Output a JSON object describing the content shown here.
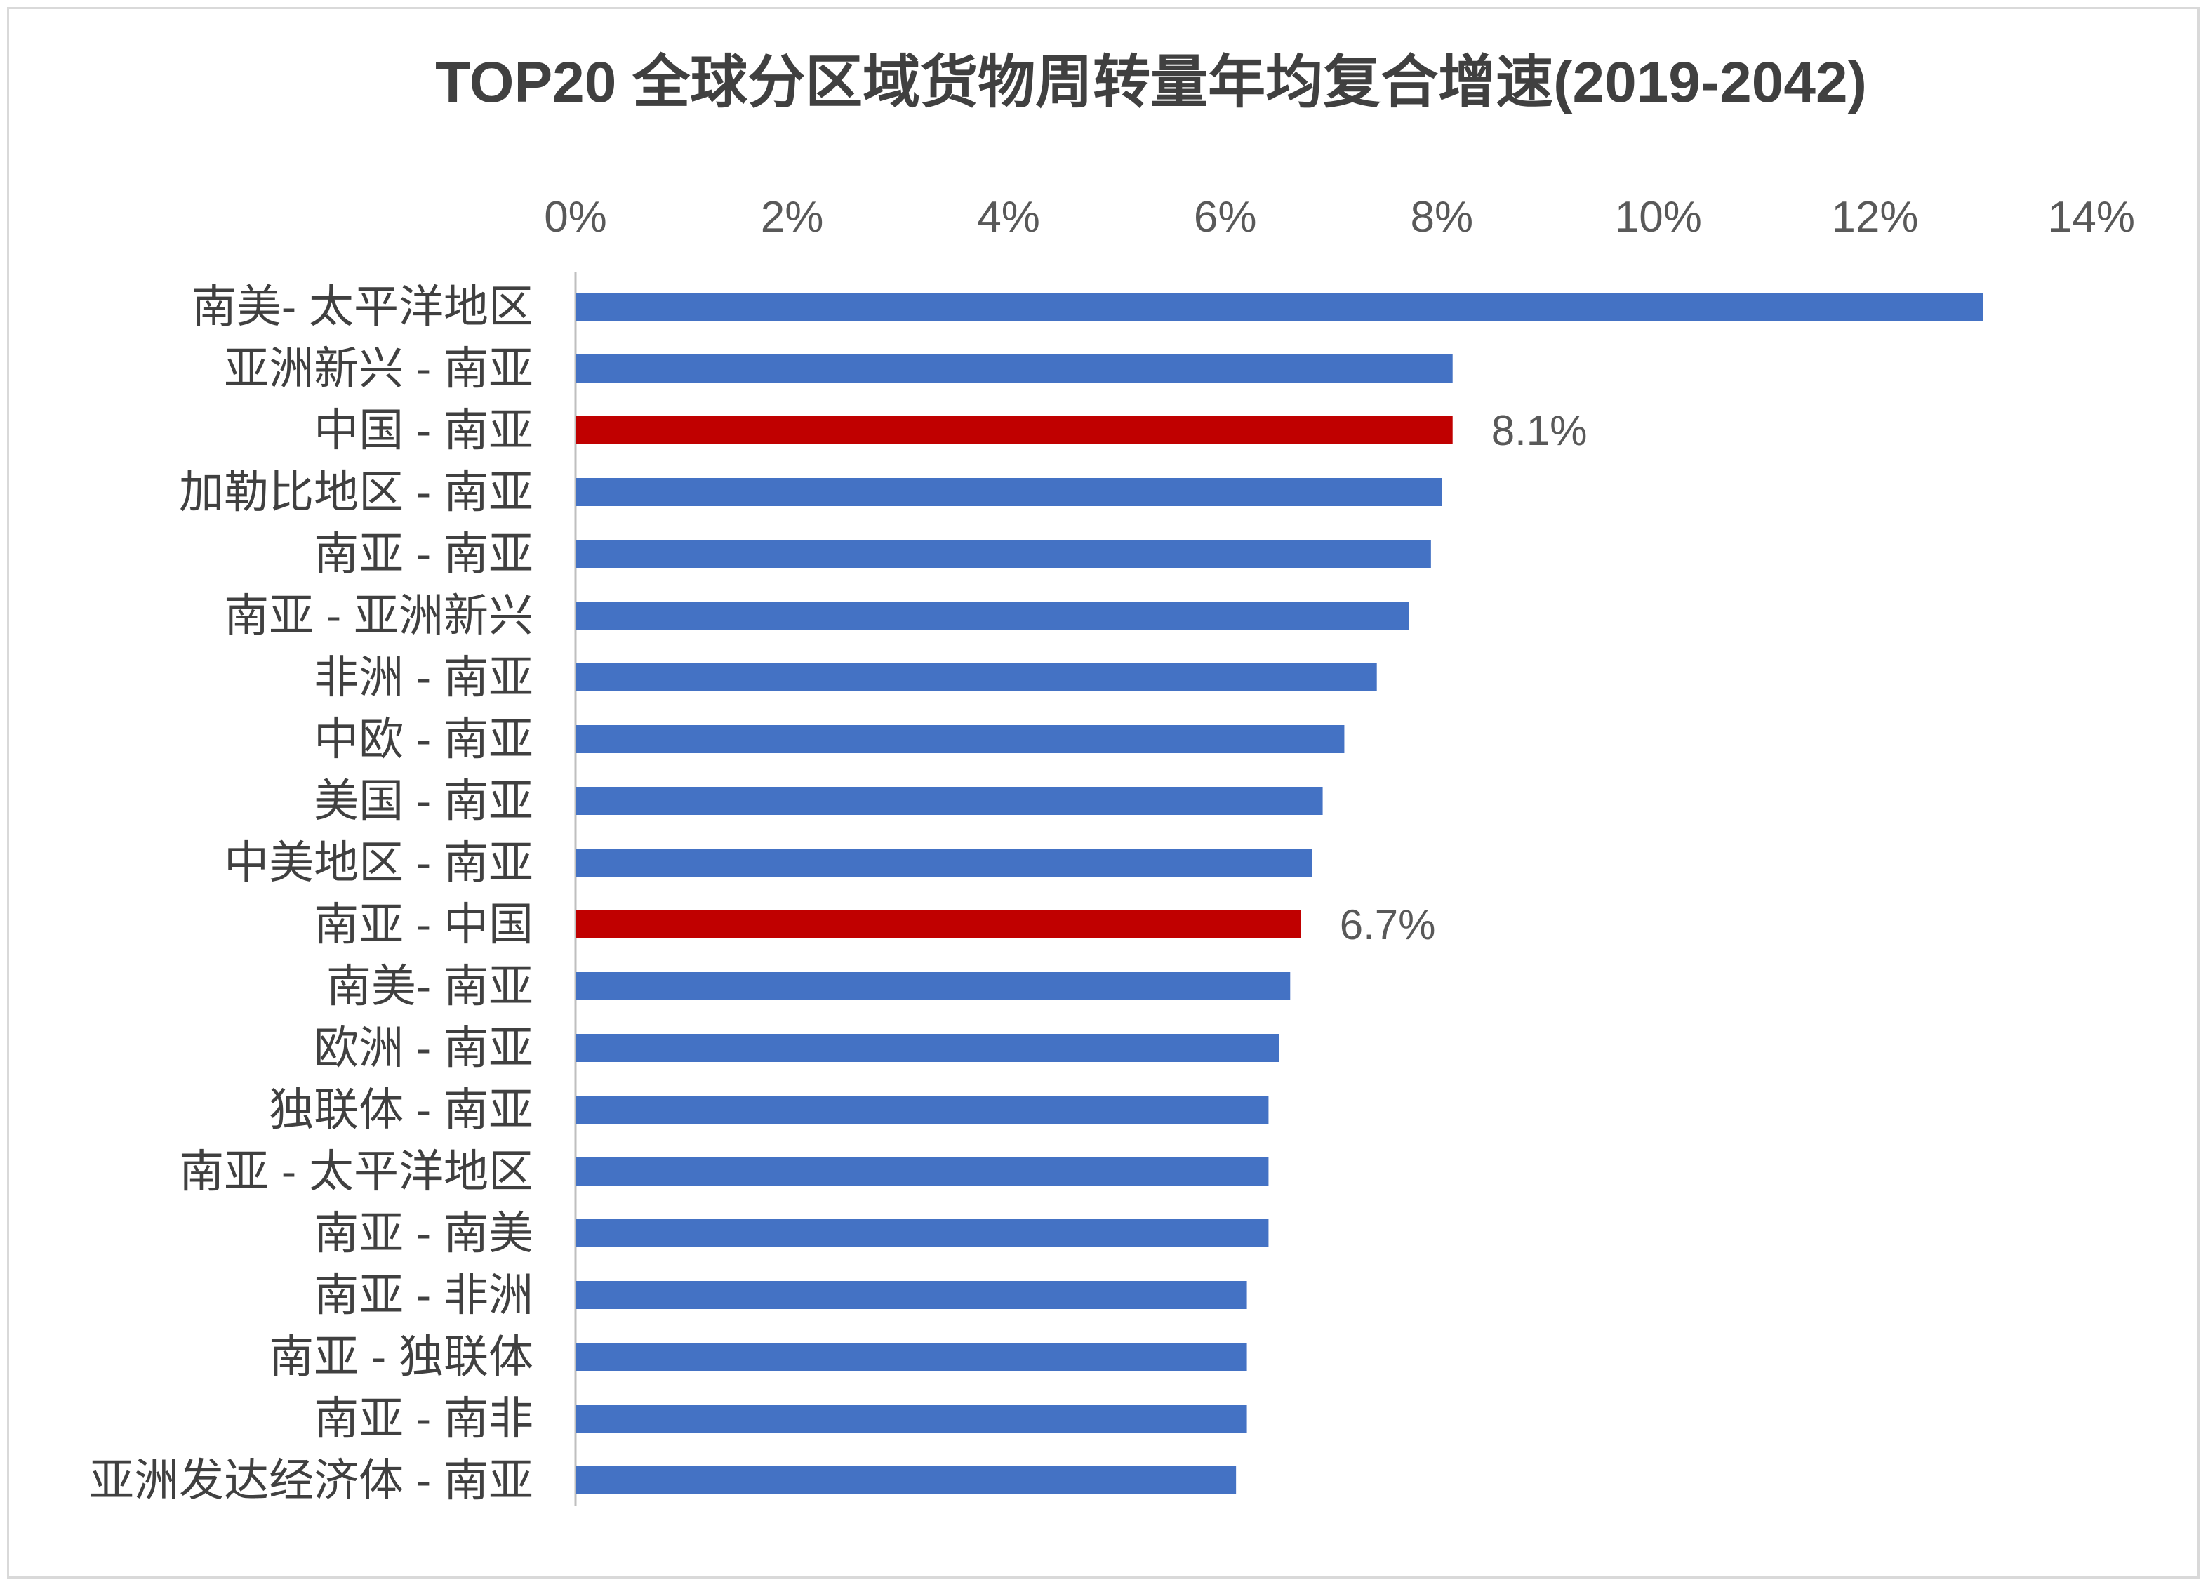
{
  "chart_data": {
    "type": "bar",
    "orientation": "horizontal",
    "title": "TOP20 全球分区域货物周转量年均复合增速(2019-2042)",
    "xlabel": "",
    "ylabel": "",
    "xlim": [
      0,
      0.14
    ],
    "x_ticks": [
      "0%",
      "2%",
      "4%",
      "6%",
      "8%",
      "10%",
      "12%",
      "14%"
    ],
    "x_axis_position": "top",
    "grid": false,
    "legend": "none",
    "categories": [
      "南美- 太平洋地区",
      "亚洲新兴 - 南亚",
      "中国 - 南亚",
      "加勒比地区 - 南亚",
      "南亚 - 南亚",
      "南亚 - 亚洲新兴",
      "非洲 - 南亚",
      "中欧 - 南亚",
      "美国 - 南亚",
      "中美地区 - 南亚",
      "南亚 - 中国",
      "南美- 南亚",
      "欧洲 - 南亚",
      "独联体 - 南亚",
      "南亚 - 太平洋地区",
      "南亚 - 南美",
      "南亚 - 非洲",
      "南亚 - 独联体",
      "南亚 - 南非",
      "亚洲发达经济体 - 南亚"
    ],
    "values": [
      0.13,
      0.081,
      0.081,
      0.08,
      0.079,
      0.077,
      0.074,
      0.071,
      0.069,
      0.068,
      0.067,
      0.066,
      0.065,
      0.064,
      0.064,
      0.064,
      0.062,
      0.062,
      0.062,
      0.061
    ],
    "highlighted": [
      2,
      10
    ],
    "data_labels": [
      {
        "index": 2,
        "text": "8.1%"
      },
      {
        "index": 10,
        "text": "6.7%"
      }
    ],
    "colors": {
      "bar": "#4472c4",
      "highlight": "#c00000",
      "axis": "#bfbfbf",
      "text": "#404040"
    }
  }
}
